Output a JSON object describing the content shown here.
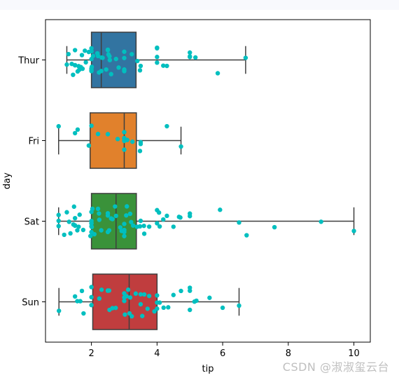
{
  "chart_data": {
    "type": "box",
    "orientation": "horizontal",
    "xlabel": "tip",
    "ylabel": "day",
    "xlim": [
      0.6,
      10.5
    ],
    "xticks": [
      2,
      4,
      6,
      8,
      10
    ],
    "grid": false,
    "legend": "none",
    "categories": [
      "Thur",
      "Fri",
      "Sat",
      "Sun"
    ],
    "box_colors": [
      "#3274a1",
      "#e1812c",
      "#3a923a",
      "#c03d3e"
    ],
    "strip_color": "#00bfbf",
    "boxes": [
      {
        "category": "Thur",
        "whisker_low": 1.25,
        "q1": 2.0,
        "median": 2.3,
        "q3": 3.36,
        "whisker_high": 6.7,
        "points": [
          1.25,
          1.3,
          1.4,
          1.44,
          1.5,
          1.5,
          1.5,
          1.58,
          1.61,
          1.63,
          1.68,
          1.71,
          1.73,
          1.8,
          1.83,
          1.92,
          2.0,
          2.0,
          2.0,
          2.0,
          2.0,
          2.0,
          2.01,
          2.05,
          2.18,
          2.2,
          2.23,
          2.3,
          2.31,
          2.34,
          2.45,
          2.5,
          2.5,
          2.52,
          2.55,
          2.56,
          2.6,
          2.75,
          2.83,
          3.0,
          3.0,
          3.0,
          3.0,
          3.23,
          3.4,
          3.48,
          3.5,
          4.0,
          4.0,
          4.0,
          4.19,
          4.0,
          4.3,
          5.0,
          5.0,
          5.0,
          5.17,
          5.85,
          6.7
        ]
      },
      {
        "category": "Fri",
        "whisker_low": 1.0,
        "q1": 1.96,
        "median": 3.0,
        "q3": 3.37,
        "whisker_high": 4.73,
        "points": [
          1.0,
          1.5,
          1.58,
          1.92,
          2.0,
          2.5,
          2.2,
          3.0,
          3.0,
          3.0,
          3.09,
          3.25,
          3.48,
          3.5,
          4.73,
          4.3,
          3.5,
          2.8,
          3.0
        ]
      },
      {
        "category": "Sat",
        "whisker_low": 1.0,
        "q1": 2.0,
        "median": 2.75,
        "q3": 3.37,
        "whisker_high": 10.0,
        "points": [
          1.0,
          1.0,
          1.0,
          1.17,
          1.25,
          1.32,
          1.36,
          1.45,
          1.47,
          1.5,
          1.5,
          1.5,
          1.57,
          1.61,
          1.64,
          1.75,
          1.97,
          2.0,
          2.0,
          2.0,
          2.0,
          2.0,
          2.0,
          2.01,
          2.03,
          2.09,
          2.2,
          2.23,
          2.24,
          2.3,
          2.5,
          2.5,
          2.5,
          2.54,
          2.6,
          2.64,
          2.72,
          2.75,
          2.88,
          2.92,
          3.0,
          3.0,
          3.0,
          3.0,
          3.06,
          3.08,
          3.18,
          3.21,
          3.27,
          3.39,
          3.48,
          3.5,
          3.6,
          3.61,
          3.76,
          4.0,
          4.0,
          4.06,
          4.08,
          4.19,
          4.3,
          4.5,
          4.67,
          4.71,
          5.0,
          5.0,
          5.92,
          6.5,
          6.73,
          7.58,
          9.0,
          10.0
        ]
      },
      {
        "category": "Sun",
        "whisker_low": 1.01,
        "q1": 2.04,
        "median": 3.15,
        "q3": 4.0,
        "whisker_high": 6.5,
        "points": [
          1.01,
          1.5,
          1.57,
          1.66,
          1.71,
          1.76,
          2.0,
          2.0,
          2.0,
          2.24,
          2.31,
          2.5,
          2.5,
          2.54,
          2.55,
          2.64,
          2.74,
          3.0,
          3.0,
          3.0,
          3.02,
          3.07,
          3.12,
          3.16,
          3.18,
          3.23,
          3.35,
          3.5,
          3.5,
          3.55,
          3.61,
          3.71,
          3.76,
          3.92,
          4.0,
          4.0,
          4.0,
          4.08,
          4.2,
          4.34,
          4.5,
          4.73,
          5.0,
          5.0,
          5.0,
          5.14,
          5.2,
          5.6,
          6.0,
          6.5
        ]
      }
    ]
  },
  "watermark": "CSDN @淑淑玺云台"
}
